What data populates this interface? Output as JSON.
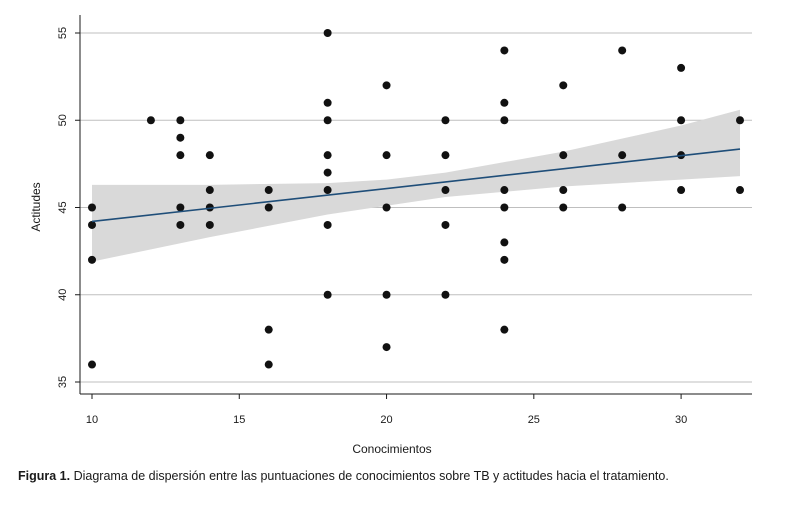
{
  "chart_data": {
    "type": "scatter",
    "xlabel": "Conocimientos",
    "ylabel": "Actitudes",
    "xlim": [
      10,
      32
    ],
    "ylim": [
      34.5,
      56
    ],
    "xticks": [
      10,
      15,
      20,
      25,
      30
    ],
    "yticks": [
      35,
      40,
      45,
      50,
      55
    ],
    "grid": true,
    "points": [
      [
        10,
        36
      ],
      [
        10,
        42
      ],
      [
        10,
        44
      ],
      [
        10,
        45
      ],
      [
        12,
        50
      ],
      [
        13,
        44
      ],
      [
        13,
        45
      ],
      [
        13,
        48
      ],
      [
        13,
        49
      ],
      [
        13,
        50
      ],
      [
        14,
        44
      ],
      [
        14,
        45
      ],
      [
        14,
        46
      ],
      [
        14,
        48
      ],
      [
        16,
        36
      ],
      [
        16,
        38
      ],
      [
        16,
        45
      ],
      [
        16,
        46
      ],
      [
        18,
        40
      ],
      [
        18,
        44
      ],
      [
        18,
        46
      ],
      [
        18,
        47
      ],
      [
        18,
        48
      ],
      [
        18,
        50
      ],
      [
        18,
        51
      ],
      [
        18,
        55
      ],
      [
        20,
        37
      ],
      [
        20,
        40
      ],
      [
        20,
        45
      ],
      [
        20,
        48
      ],
      [
        20,
        52
      ],
      [
        22,
        40
      ],
      [
        22,
        44
      ],
      [
        22,
        46
      ],
      [
        22,
        48
      ],
      [
        22,
        50
      ],
      [
        24,
        38
      ],
      [
        24,
        42
      ],
      [
        24,
        43
      ],
      [
        24,
        45
      ],
      [
        24,
        46
      ],
      [
        24,
        50
      ],
      [
        24,
        51
      ],
      [
        24,
        54
      ],
      [
        26,
        45
      ],
      [
        26,
        46
      ],
      [
        26,
        48
      ],
      [
        26,
        52
      ],
      [
        28,
        45
      ],
      [
        28,
        48
      ],
      [
        28,
        54
      ],
      [
        30,
        46
      ],
      [
        30,
        48
      ],
      [
        30,
        50
      ],
      [
        30,
        53
      ],
      [
        32,
        46
      ],
      [
        32,
        50
      ]
    ],
    "fit_line": {
      "x": [
        10,
        32
      ],
      "y": [
        44.2,
        48.35
      ]
    },
    "confidence_band": {
      "x": [
        10,
        14,
        18,
        20,
        22,
        26,
        30,
        32
      ],
      "lower": [
        41.9,
        43.3,
        44.6,
        45.1,
        45.6,
        46.2,
        46.6,
        46.8
      ],
      "upper": [
        46.3,
        46.3,
        46.4,
        46.6,
        47.0,
        48.2,
        49.7,
        50.6
      ]
    },
    "colors": {
      "points": "#111111",
      "line": "#1f4e79",
      "band": "#d9d9d9",
      "grid": "#bfbfbf"
    }
  },
  "caption": {
    "label": "Figura 1.",
    "text": "Diagrama de dispersión entre las puntuaciones de conocimientos sobre TB y actitudes hacia el tratamiento."
  }
}
